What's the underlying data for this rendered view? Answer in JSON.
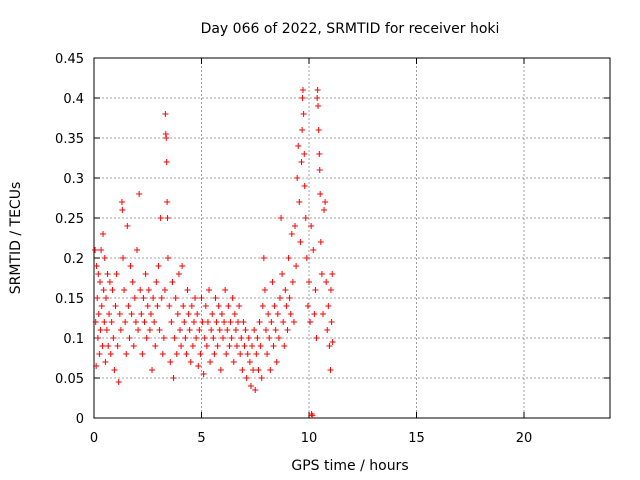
{
  "chart_data": {
    "type": "scatter",
    "title": "Day 066 of 2022, SRMTID for receiver hoki",
    "xlabel": "GPS time / hours",
    "ylabel": "SRMTID / TECUs",
    "xlim": [
      0,
      24
    ],
    "ylim": [
      0,
      0.45
    ],
    "xticks": [
      0,
      5,
      10,
      15,
      20
    ],
    "xtick_labels": [
      "0",
      "5",
      "10",
      "15",
      "20"
    ],
    "yticks": [
      0,
      0.05,
      0.1,
      0.15,
      0.2,
      0.25,
      0.3,
      0.35,
      0.4,
      0.45
    ],
    "ytick_labels": [
      "0",
      "0.05",
      "0.1",
      "0.15",
      "0.2",
      "0.25",
      "0.3",
      "0.35",
      "0.4",
      "0.45"
    ],
    "grid": true,
    "marker": "+",
    "color": "#ff0000",
    "series": [
      {
        "name": "SRMTID",
        "points": [
          [
            0.05,
            0.21
          ],
          [
            0.08,
            0.12
          ],
          [
            0.1,
            0.065
          ],
          [
            0.12,
            0.19
          ],
          [
            0.15,
            0.15
          ],
          [
            0.18,
            0.1
          ],
          [
            0.2,
            0.18
          ],
          [
            0.22,
            0.13
          ],
          [
            0.25,
            0.08
          ],
          [
            0.28,
            0.17
          ],
          [
            0.3,
            0.11
          ],
          [
            0.33,
            0.21
          ],
          [
            0.36,
            0.14
          ],
          [
            0.4,
            0.09
          ],
          [
            0.42,
            0.23
          ],
          [
            0.45,
            0.16
          ],
          [
            0.48,
            0.12
          ],
          [
            0.5,
            0.2
          ],
          [
            0.53,
            0.07
          ],
          [
            0.56,
            0.15
          ],
          [
            0.6,
            0.11
          ],
          [
            0.63,
            0.18
          ],
          [
            0.66,
            0.09
          ],
          [
            0.7,
            0.13
          ],
          [
            0.74,
            0.17
          ],
          [
            0.78,
            0.08
          ],
          [
            0.82,
            0.12
          ],
          [
            0.86,
            0.16
          ],
          [
            0.9,
            0.1
          ],
          [
            0.95,
            0.06
          ],
          [
            1.0,
            0.14
          ],
          [
            1.05,
            0.18
          ],
          [
            1.1,
            0.09
          ],
          [
            1.15,
            0.045
          ],
          [
            1.2,
            0.13
          ],
          [
            1.25,
            0.11
          ],
          [
            1.3,
            0.27
          ],
          [
            1.32,
            0.26
          ],
          [
            1.35,
            0.2
          ],
          [
            1.4,
            0.16
          ],
          [
            1.45,
            0.12
          ],
          [
            1.5,
            0.08
          ],
          [
            1.55,
            0.24
          ],
          [
            1.6,
            0.14
          ],
          [
            1.65,
            0.1
          ],
          [
            1.7,
            0.19
          ],
          [
            1.75,
            0.13
          ],
          [
            1.8,
            0.17
          ],
          [
            1.85,
            0.09
          ],
          [
            1.9,
            0.15
          ],
          [
            1.95,
            0.12
          ],
          [
            2.0,
            0.21
          ],
          [
            2.05,
            0.11
          ],
          [
            2.1,
            0.28
          ],
          [
            2.15,
            0.16
          ],
          [
            2.2,
            0.13
          ],
          [
            2.25,
            0.08
          ],
          [
            2.3,
            0.15
          ],
          [
            2.35,
            0.12
          ],
          [
            2.4,
            0.18
          ],
          [
            2.45,
            0.1
          ],
          [
            2.5,
            0.14
          ],
          [
            2.55,
            0.16
          ],
          [
            2.6,
            0.11
          ],
          [
            2.65,
            0.13
          ],
          [
            2.7,
            0.06
          ],
          [
            2.75,
            0.15
          ],
          [
            2.8,
            0.12
          ],
          [
            2.85,
            0.09
          ],
          [
            2.9,
            0.17
          ],
          [
            2.95,
            0.14
          ],
          [
            3.0,
            0.19
          ],
          [
            3.05,
            0.11
          ],
          [
            3.1,
            0.25
          ],
          [
            3.15,
            0.15
          ],
          [
            3.2,
            0.08
          ],
          [
            3.25,
            0.1
          ],
          [
            3.3,
            0.16
          ],
          [
            3.32,
            0.38
          ],
          [
            3.34,
            0.355
          ],
          [
            3.36,
            0.35
          ],
          [
            3.38,
            0.32
          ],
          [
            3.4,
            0.27
          ],
          [
            3.42,
            0.25
          ],
          [
            3.44,
            0.2
          ],
          [
            3.5,
            0.14
          ],
          [
            3.55,
            0.07
          ],
          [
            3.6,
            0.12
          ],
          [
            3.65,
            0.17
          ],
          [
            3.7,
            0.05
          ],
          [
            3.75,
            0.1
          ],
          [
            3.8,
            0.15
          ],
          [
            3.85,
            0.08
          ],
          [
            3.9,
            0.13
          ],
          [
            3.95,
            0.18
          ],
          [
            4.0,
            0.11
          ],
          [
            4.05,
            0.09
          ],
          [
            4.1,
            0.19
          ],
          [
            4.15,
            0.14
          ],
          [
            4.2,
            0.12
          ],
          [
            4.25,
            0.1
          ],
          [
            4.3,
            0.08
          ],
          [
            4.35,
            0.16
          ],
          [
            4.4,
            0.13
          ],
          [
            4.45,
            0.11
          ],
          [
            4.5,
            0.07
          ],
          [
            4.55,
            0.14
          ],
          [
            4.6,
            0.09
          ],
          [
            4.65,
            0.12
          ],
          [
            4.7,
            0.15
          ],
          [
            4.75,
            0.1
          ],
          [
            4.8,
            0.13
          ],
          [
            4.85,
            0.065
          ],
          [
            4.9,
            0.11
          ],
          [
            4.95,
            0.08
          ],
          [
            5.0,
            0.15
          ],
          [
            5.05,
            0.12
          ],
          [
            5.1,
            0.055
          ],
          [
            5.15,
            0.1
          ],
          [
            5.2,
            0.14
          ],
          [
            5.25,
            0.09
          ],
          [
            5.3,
            0.12
          ],
          [
            5.35,
            0.16
          ],
          [
            5.4,
            0.07
          ],
          [
            5.45,
            0.11
          ],
          [
            5.5,
            0.13
          ],
          [
            5.55,
            0.1
          ],
          [
            5.6,
            0.08
          ],
          [
            5.65,
            0.15
          ],
          [
            5.7,
            0.12
          ],
          [
            5.75,
            0.09
          ],
          [
            5.8,
            0.14
          ],
          [
            5.85,
            0.11
          ],
          [
            5.9,
            0.06
          ],
          [
            5.95,
            0.13
          ],
          [
            6.0,
            0.1
          ],
          [
            6.05,
            0.12
          ],
          [
            6.1,
            0.16
          ],
          [
            6.15,
            0.08
          ],
          [
            6.2,
            0.11
          ],
          [
            6.25,
            0.14
          ],
          [
            6.3,
            0.09
          ],
          [
            6.35,
            0.12
          ],
          [
            6.4,
            0.1
          ],
          [
            6.45,
            0.15
          ],
          [
            6.5,
            0.07
          ],
          [
            6.55,
            0.13
          ],
          [
            6.6,
            0.11
          ],
          [
            6.65,
            0.09
          ],
          [
            6.7,
            0.12
          ],
          [
            6.75,
            0.14
          ],
          [
            6.8,
            0.08
          ],
          [
            6.85,
            0.1
          ],
          [
            6.9,
            0.06
          ],
          [
            6.95,
            0.12
          ],
          [
            7.0,
            0.09
          ],
          [
            7.05,
            0.11
          ],
          [
            7.1,
            0.05
          ],
          [
            7.15,
            0.08
          ],
          [
            7.2,
            0.1
          ],
          [
            7.25,
            0.07
          ],
          [
            7.3,
            0.04
          ],
          [
            7.35,
            0.09
          ],
          [
            7.4,
            0.06
          ],
          [
            7.45,
            0.11
          ],
          [
            7.5,
            0.035
          ],
          [
            7.55,
            0.08
          ],
          [
            7.6,
            0.1
          ],
          [
            7.65,
            0.06
          ],
          [
            7.7,
            0.12
          ],
          [
            7.75,
            0.09
          ],
          [
            7.8,
            0.05
          ],
          [
            7.85,
            0.14
          ],
          [
            7.9,
            0.2
          ],
          [
            7.95,
            0.16
          ],
          [
            8.0,
            0.11
          ],
          [
            8.05,
            0.08
          ],
          [
            8.1,
            0.13
          ],
          [
            8.15,
            0.1
          ],
          [
            8.2,
            0.06
          ],
          [
            8.25,
            0.12
          ],
          [
            8.3,
            0.17
          ],
          [
            8.35,
            0.09
          ],
          [
            8.4,
            0.14
          ],
          [
            8.45,
            0.11
          ],
          [
            8.5,
            0.07
          ],
          [
            8.55,
            0.13
          ],
          [
            8.6,
            0.1
          ],
          [
            8.65,
            0.15
          ],
          [
            8.7,
            0.25
          ],
          [
            8.75,
            0.18
          ],
          [
            8.8,
            0.12
          ],
          [
            8.85,
            0.09
          ],
          [
            8.9,
            0.16
          ],
          [
            8.95,
            0.14
          ],
          [
            9.0,
            0.11
          ],
          [
            9.05,
            0.2
          ],
          [
            9.1,
            0.15
          ],
          [
            9.15,
            0.13
          ],
          [
            9.2,
            0.23
          ],
          [
            9.25,
            0.17
          ],
          [
            9.3,
            0.12
          ],
          [
            9.35,
            0.24
          ],
          [
            9.4,
            0.19
          ],
          [
            9.45,
            0.3
          ],
          [
            9.5,
            0.34
          ],
          [
            9.55,
            0.27
          ],
          [
            9.6,
            0.22
          ],
          [
            9.65,
            0.32
          ],
          [
            9.68,
            0.36
          ],
          [
            9.7,
            0.4
          ],
          [
            9.72,
            0.41
          ],
          [
            9.75,
            0.38
          ],
          [
            9.78,
            0.33
          ],
          [
            9.8,
            0.29
          ],
          [
            9.85,
            0.25
          ],
          [
            9.9,
            0.2
          ],
          [
            9.95,
            0.14
          ],
          [
            10.0,
            0.17
          ],
          [
            10.05,
            0.12
          ],
          [
            10.1,
            0.24
          ],
          [
            10.12,
            0.005
          ],
          [
            10.15,
            0.003
          ],
          [
            10.2,
            0.21
          ],
          [
            10.25,
            0.13
          ],
          [
            10.3,
            0.16
          ],
          [
            10.35,
            0.1
          ],
          [
            10.38,
            0.4
          ],
          [
            10.4,
            0.41
          ],
          [
            10.42,
            0.39
          ],
          [
            10.45,
            0.36
          ],
          [
            10.48,
            0.33
          ],
          [
            10.5,
            0.31
          ],
          [
            10.52,
            0.28
          ],
          [
            10.55,
            0.22
          ],
          [
            10.6,
            0.18
          ],
          [
            10.65,
            0.13
          ],
          [
            10.7,
            0.26
          ],
          [
            10.75,
            0.27
          ],
          [
            10.8,
            0.17
          ],
          [
            10.85,
            0.11
          ],
          [
            10.9,
            0.14
          ],
          [
            10.95,
            0.09
          ],
          [
            11.0,
            0.06
          ],
          [
            11.02,
            0.16
          ],
          [
            11.05,
            0.12
          ],
          [
            11.08,
            0.18
          ],
          [
            11.1,
            0.095
          ]
        ]
      }
    ]
  }
}
